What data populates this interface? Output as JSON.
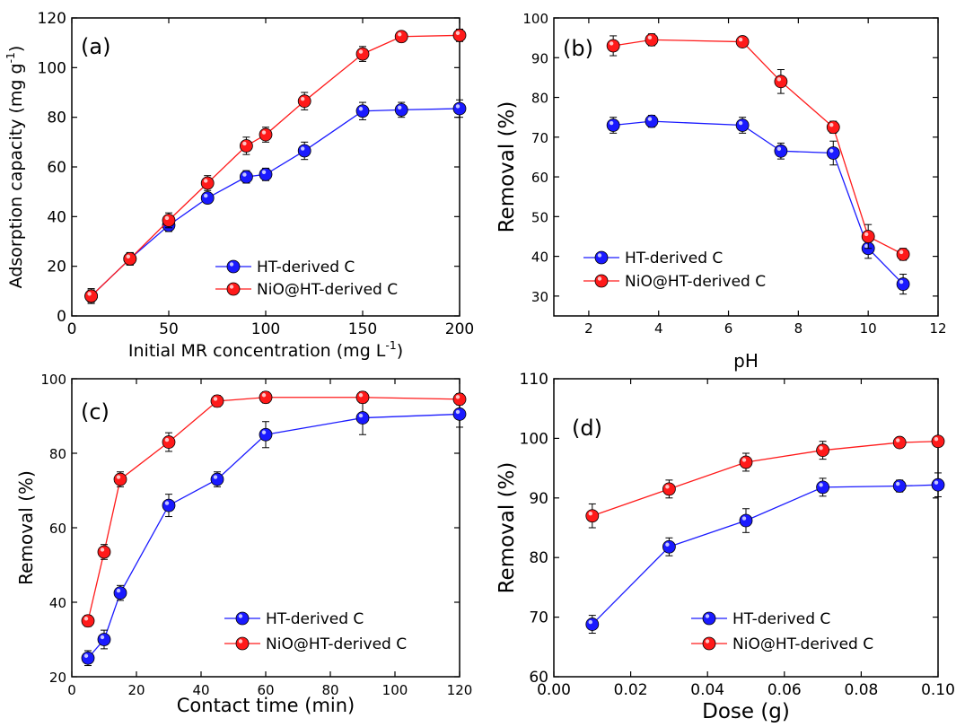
{
  "chart_data": [
    {
      "type": "line",
      "panel_label": "(a)",
      "xlabel": "Initial MR concentration (mg L",
      "xlabel_sup": "-1",
      "xlabel_end": ")",
      "ylabel": "Adsorption capacity (mg g",
      "ylabel_sup": "-1",
      "ylabel_end": ")",
      "xlim": [
        0,
        200
      ],
      "ylim": [
        0,
        120
      ],
      "xticks": [
        "0",
        "50",
        "100",
        "150",
        "200"
      ],
      "yticks": [
        "0",
        "20",
        "40",
        "60",
        "80",
        "100",
        "120"
      ],
      "legend_position": "bottom-right",
      "series": [
        {
          "name": "HT-derived C",
          "color": "#1a1aff",
          "x": [
            10,
            30,
            50,
            70,
            90,
            100,
            120,
            150,
            170,
            200
          ],
          "y": [
            8,
            23,
            36.5,
            47.5,
            56,
            57,
            66.5,
            82.5,
            83,
            83.5
          ],
          "err": [
            2.5,
            2.5,
            2.5,
            2,
            2.5,
            2.5,
            3.5,
            3.5,
            3,
            3.5
          ]
        },
        {
          "name": "NiO@HT-derived C",
          "color": "#ff1a1a",
          "x": [
            10,
            30,
            50,
            70,
            90,
            100,
            120,
            150,
            170,
            200
          ],
          "y": [
            8,
            23,
            38.5,
            53.5,
            68.5,
            73,
            86.5,
            105.5,
            112.5,
            113
          ],
          "err": [
            3,
            2.5,
            3,
            3,
            3.5,
            3,
            3.5,
            3,
            2,
            2.5
          ]
        }
      ]
    },
    {
      "type": "line",
      "panel_label": "(b)",
      "xlabel": "pH",
      "ylabel": "Removal (%)",
      "xlim": [
        1,
        12
      ],
      "ylim": [
        25,
        100
      ],
      "xticks": [
        "2",
        "4",
        "6",
        "8",
        "10",
        "12"
      ],
      "yticks": [
        "30",
        "40",
        "50",
        "60",
        "70",
        "80",
        "90",
        "100"
      ],
      "legend_position": "bottom-left",
      "series": [
        {
          "name": "HT-derived C",
          "color": "#1a1aff",
          "x": [
            2.7,
            3.8,
            6.4,
            7.5,
            9.0,
            10.0,
            11.0
          ],
          "y": [
            73,
            74,
            73,
            66.5,
            66,
            42,
            33
          ],
          "err": [
            2,
            1.5,
            2,
            2,
            3,
            2.5,
            2.5
          ]
        },
        {
          "name": "NiO@HT-derived C",
          "color": "#ff1a1a",
          "x": [
            2.7,
            3.8,
            6.4,
            7.5,
            9.0,
            10.0,
            11.0
          ],
          "y": [
            93,
            94.5,
            94,
            84,
            72.5,
            45,
            40.5
          ],
          "err": [
            2.5,
            1.5,
            1,
            3,
            1.5,
            3,
            1.5
          ]
        }
      ]
    },
    {
      "type": "line",
      "panel_label": "(c)",
      "xlabel": "Contact time (min)",
      "ylabel": "Removal (%)",
      "xlim": [
        0,
        120
      ],
      "ylim": [
        20,
        100
      ],
      "xticks": [
        "0",
        "20",
        "40",
        "60",
        "80",
        "100",
        "120"
      ],
      "yticks": [
        "20",
        "40",
        "60",
        "80",
        "100"
      ],
      "legend_position": "bottom-right",
      "series": [
        {
          "name": "HT-derived C",
          "color": "#1a1aff",
          "x": [
            5,
            10,
            15,
            30,
            45,
            60,
            90,
            120
          ],
          "y": [
            25,
            30,
            42.5,
            66,
            73,
            85,
            89.5,
            90.5
          ],
          "err": [
            2,
            2.5,
            2,
            3,
            2,
            3.5,
            4.5,
            3.5
          ]
        },
        {
          "name": "NiO@HT-derived C",
          "color": "#ff1a1a",
          "x": [
            5,
            10,
            15,
            30,
            45,
            60,
            90,
            120
          ],
          "y": [
            35,
            53.5,
            73,
            83,
            94,
            95,
            95,
            94.5
          ],
          "err": [
            1.5,
            2,
            2,
            2.5,
            1.5,
            1.5,
            1.5,
            1.5
          ]
        }
      ]
    },
    {
      "type": "line",
      "panel_label": "(d)",
      "xlabel": "Dose (g)",
      "ylabel": "Removal (%)",
      "xlim": [
        0,
        0.1
      ],
      "ylim": [
        60,
        110
      ],
      "xticks": [
        "0.00",
        "0.02",
        "0.04",
        "0.06",
        "0.08",
        "0.10"
      ],
      "yticks": [
        "60",
        "70",
        "80",
        "90",
        "100",
        "110"
      ],
      "legend_position": "bottom-right",
      "series": [
        {
          "name": "HT-derived C",
          "color": "#1a1aff",
          "x": [
            0.01,
            0.03,
            0.05,
            0.07,
            0.09,
            0.1
          ],
          "y": [
            68.8,
            81.8,
            86.2,
            91.8,
            92,
            92.2
          ],
          "err": [
            1.5,
            1.5,
            2,
            1.5,
            1,
            2
          ]
        },
        {
          "name": "NiO@HT-derived C",
          "color": "#ff1a1a",
          "x": [
            0.01,
            0.03,
            0.05,
            0.07,
            0.09,
            0.1
          ],
          "y": [
            87,
            91.5,
            96,
            98,
            99.3,
            99.5
          ],
          "err": [
            2,
            1.5,
            1.5,
            1.5,
            0.8,
            0.8
          ]
        }
      ]
    }
  ]
}
